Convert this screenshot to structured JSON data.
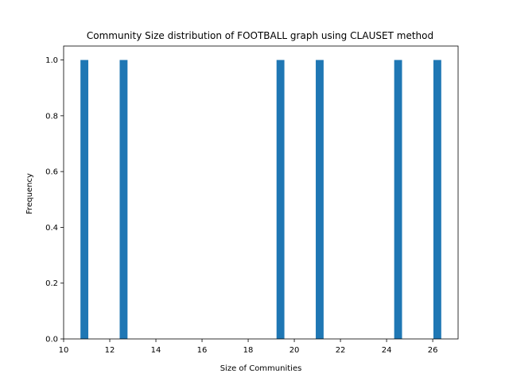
{
  "chart_data": {
    "type": "bar",
    "title": "Community Size distribution of FOOTBALL graph using CLAUSET method",
    "xlabel": "Size of Communities",
    "ylabel": "Frequency",
    "x": [
      10.9,
      12.6,
      19.4,
      21.1,
      24.5,
      26.2
    ],
    "values": [
      1,
      1,
      1,
      1,
      1,
      1
    ],
    "bar_width": 0.34,
    "xlim": [
      10.0,
      27.1
    ],
    "ylim": [
      0,
      1.05
    ],
    "xticks": [
      10,
      12,
      14,
      16,
      18,
      20,
      22,
      24,
      26
    ],
    "yticks": [
      0.0,
      0.2,
      0.4,
      0.6,
      0.8,
      1.0
    ],
    "bar_color": "#1f77b4",
    "grid": false
  }
}
